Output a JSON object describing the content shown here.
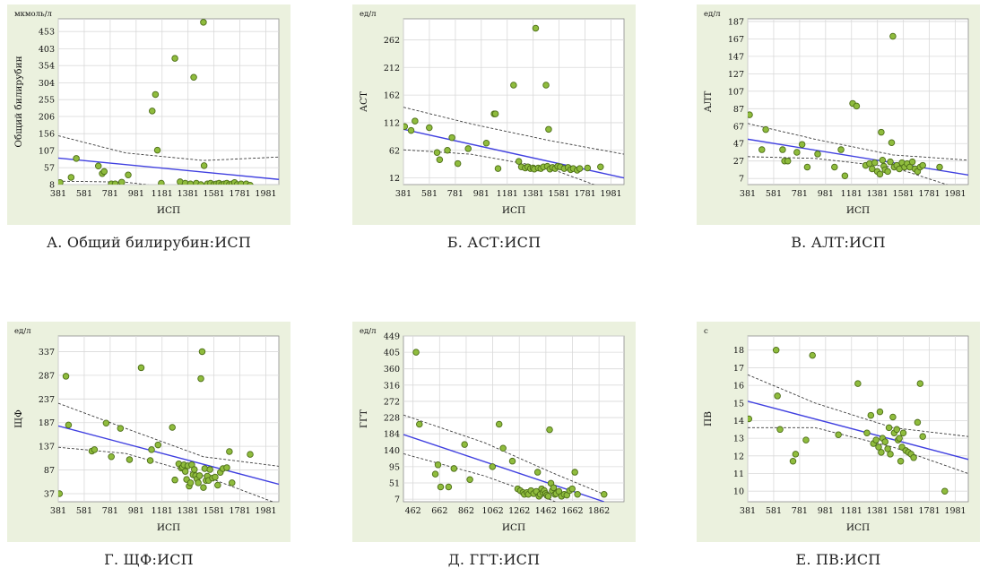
{
  "chart_data": [
    {
      "type": "scatter",
      "caption": "А. Общий билирубин:ИСП",
      "unit": "мкмоль/л",
      "xlabel": "ИСП",
      "ylabel": "Общий билирубин",
      "xticks": [
        381,
        581,
        781,
        981,
        1181,
        1381,
        1581,
        1781,
        1981
      ],
      "yticks": [
        8,
        57,
        107,
        156,
        206,
        255,
        304,
        354,
        403,
        453
      ],
      "xlim": [
        381,
        2081
      ],
      "ylim": [
        8,
        490
      ],
      "points": [
        [
          395,
          14
        ],
        [
          480,
          29
        ],
        [
          520,
          84
        ],
        [
          690,
          62
        ],
        [
          720,
          40
        ],
        [
          735,
          46
        ],
        [
          790,
          10
        ],
        [
          820,
          10
        ],
        [
          870,
          15
        ],
        [
          920,
          36
        ],
        [
          1105,
          222
        ],
        [
          1130,
          270
        ],
        [
          1145,
          108
        ],
        [
          1175,
          12
        ],
        [
          1280,
          375
        ],
        [
          1320,
          16
        ],
        [
          1360,
          12
        ],
        [
          1400,
          10
        ],
        [
          1425,
          320
        ],
        [
          1445,
          12
        ],
        [
          1480,
          8
        ],
        [
          1500,
          480
        ],
        [
          1505,
          63
        ],
        [
          1530,
          10
        ],
        [
          1555,
          12
        ],
        [
          1580,
          8
        ],
        [
          1600,
          10
        ],
        [
          1620,
          12
        ],
        [
          1640,
          8
        ],
        [
          1660,
          10
        ],
        [
          1680,
          12
        ],
        [
          1700,
          8
        ],
        [
          1720,
          10
        ],
        [
          1740,
          14
        ],
        [
          1760,
          8
        ],
        [
          1790,
          10
        ],
        [
          1830,
          10
        ],
        [
          1860,
          6
        ]
      ],
      "fit": [
        [
          381,
          85
        ],
        [
          2081,
          23
        ]
      ],
      "ci_upper": [
        [
          381,
          150
        ],
        [
          900,
          100
        ],
        [
          1500,
          78
        ],
        [
          2081,
          88
        ]
      ],
      "ci_lower": [
        [
          381,
          18
        ],
        [
          900,
          15
        ],
        [
          1500,
          -12
        ],
        [
          2081,
          -60
        ]
      ]
    },
    {
      "type": "scatter",
      "caption": "Б. АСТ:ИСП",
      "unit": "ед/л",
      "xlabel": "ИСП",
      "ylabel": "АСТ",
      "xticks": [
        381,
        581,
        781,
        981,
        1181,
        1381,
        1581,
        1781,
        1981
      ],
      "yticks": [
        12,
        62,
        112,
        162,
        212,
        262
      ],
      "xlim": [
        381,
        2081
      ],
      "ylim": [
        0,
        300
      ],
      "points": [
        [
          390,
          105
        ],
        [
          440,
          98
        ],
        [
          470,
          115
        ],
        [
          580,
          103
        ],
        [
          640,
          58
        ],
        [
          660,
          45
        ],
        [
          720,
          62
        ],
        [
          755,
          85
        ],
        [
          800,
          38
        ],
        [
          880,
          65
        ],
        [
          1020,
          75
        ],
        [
          1080,
          128
        ],
        [
          1090,
          128
        ],
        [
          1110,
          29
        ],
        [
          1230,
          180
        ],
        [
          1270,
          42
        ],
        [
          1290,
          32
        ],
        [
          1320,
          30
        ],
        [
          1340,
          32
        ],
        [
          1360,
          29
        ],
        [
          1380,
          30
        ],
        [
          1390,
          28
        ],
        [
          1400,
          283
        ],
        [
          1420,
          30
        ],
        [
          1440,
          29
        ],
        [
          1460,
          32
        ],
        [
          1480,
          180
        ],
        [
          1490,
          33
        ],
        [
          1500,
          100
        ],
        [
          1510,
          28
        ],
        [
          1530,
          31
        ],
        [
          1550,
          29
        ],
        [
          1570,
          33
        ],
        [
          1590,
          32
        ],
        [
          1620,
          29
        ],
        [
          1650,
          31
        ],
        [
          1670,
          27
        ],
        [
          1690,
          29
        ],
        [
          1720,
          26
        ],
        [
          1740,
          29
        ],
        [
          1800,
          30
        ],
        [
          1900,
          32
        ]
      ],
      "fit": [
        [
          381,
          100
        ],
        [
          2081,
          12
        ]
      ],
      "ci_upper": [
        [
          381,
          140
        ],
        [
          900,
          110
        ],
        [
          1500,
          80
        ],
        [
          2081,
          55
        ]
      ],
      "ci_lower": [
        [
          381,
          63
        ],
        [
          900,
          55
        ],
        [
          1500,
          30
        ],
        [
          2081,
          -20
        ]
      ]
    },
    {
      "type": "scatter",
      "caption": "В. АЛТ:ИСП",
      "unit": "ед/л",
      "xlabel": "ИСП",
      "ylabel": "АЛТ",
      "xticks": [
        381,
        581,
        781,
        981,
        1181,
        1381,
        1581,
        1781,
        1981
      ],
      "yticks": [
        7,
        27,
        47,
        67,
        87,
        107,
        127,
        147,
        167,
        187
      ],
      "xlim": [
        381,
        2081
      ],
      "ylim": [
        0,
        190
      ],
      "points": [
        [
          395,
          80
        ],
        [
          490,
          40
        ],
        [
          520,
          63
        ],
        [
          650,
          40
        ],
        [
          665,
          27
        ],
        [
          690,
          27
        ],
        [
          760,
          37
        ],
        [
          800,
          46
        ],
        [
          840,
          20
        ],
        [
          920,
          35
        ],
        [
          1050,
          20
        ],
        [
          1100,
          40
        ],
        [
          1130,
          10
        ],
        [
          1190,
          93
        ],
        [
          1220,
          90
        ],
        [
          1290,
          22
        ],
        [
          1320,
          24
        ],
        [
          1340,
          18
        ],
        [
          1360,
          25
        ],
        [
          1380,
          15
        ],
        [
          1400,
          12
        ],
        [
          1410,
          60
        ],
        [
          1420,
          28
        ],
        [
          1430,
          21
        ],
        [
          1440,
          17
        ],
        [
          1460,
          15
        ],
        [
          1480,
          26
        ],
        [
          1490,
          48
        ],
        [
          1500,
          170
        ],
        [
          1510,
          20
        ],
        [
          1530,
          22
        ],
        [
          1550,
          18
        ],
        [
          1570,
          25
        ],
        [
          1590,
          20
        ],
        [
          1610,
          24
        ],
        [
          1630,
          20
        ],
        [
          1650,
          26
        ],
        [
          1670,
          18
        ],
        [
          1690,
          15
        ],
        [
          1710,
          20
        ],
        [
          1730,
          22
        ],
        [
          1860,
          20
        ]
      ],
      "fit": [
        [
          381,
          52
        ],
        [
          2081,
          11
        ]
      ],
      "ci_upper": [
        [
          381,
          70
        ],
        [
          900,
          52
        ],
        [
          1500,
          34
        ],
        [
          2081,
          28
        ]
      ],
      "ci_lower": [
        [
          381,
          32
        ],
        [
          900,
          30
        ],
        [
          1500,
          20
        ],
        [
          2081,
          -8
        ]
      ]
    },
    {
      "type": "scatter",
      "caption": "Г. ЩФ:ИСП",
      "unit": "ед/л",
      "xlabel": "ИСП",
      "ylabel": "ЩФ",
      "xticks": [
        381,
        581,
        781,
        981,
        1181,
        1381,
        1581,
        1781,
        1981
      ],
      "yticks": [
        37,
        87,
        137,
        187,
        237,
        287,
        337
      ],
      "xlim": [
        381,
        2081
      ],
      "ylim": [
        20,
        370
      ],
      "points": [
        [
          390,
          37
        ],
        [
          440,
          285
        ],
        [
          460,
          182
        ],
        [
          640,
          127
        ],
        [
          660,
          130
        ],
        [
          750,
          186
        ],
        [
          790,
          115
        ],
        [
          860,
          175
        ],
        [
          930,
          109
        ],
        [
          1020,
          303
        ],
        [
          1090,
          107
        ],
        [
          1100,
          130
        ],
        [
          1150,
          140
        ],
        [
          1260,
          177
        ],
        [
          1280,
          66
        ],
        [
          1310,
          100
        ],
        [
          1330,
          91
        ],
        [
          1340,
          93
        ],
        [
          1350,
          98
        ],
        [
          1360,
          84
        ],
        [
          1370,
          67
        ],
        [
          1380,
          96
        ],
        [
          1390,
          53
        ],
        [
          1400,
          60
        ],
        [
          1410,
          98
        ],
        [
          1420,
          77
        ],
        [
          1430,
          88
        ],
        [
          1440,
          75
        ],
        [
          1450,
          68
        ],
        [
          1460,
          60
        ],
        [
          1470,
          75
        ],
        [
          1480,
          280
        ],
        [
          1490,
          337
        ],
        [
          1500,
          50
        ],
        [
          1510,
          90
        ],
        [
          1520,
          65
        ],
        [
          1530,
          74
        ],
        [
          1540,
          65
        ],
        [
          1550,
          88
        ],
        [
          1570,
          70
        ],
        [
          1590,
          72
        ],
        [
          1610,
          55
        ],
        [
          1630,
          82
        ],
        [
          1650,
          90
        ],
        [
          1680,
          92
        ],
        [
          1700,
          126
        ],
        [
          1720,
          60
        ],
        [
          1860,
          120
        ]
      ],
      "fit": [
        [
          381,
          180
        ],
        [
          2081,
          57
        ]
      ],
      "ci_upper": [
        [
          381,
          228
        ],
        [
          900,
          175
        ],
        [
          1500,
          115
        ],
        [
          2081,
          95
        ]
      ],
      "ci_lower": [
        [
          381,
          135
        ],
        [
          900,
          122
        ],
        [
          1500,
          75
        ],
        [
          2081,
          15
        ]
      ]
    },
    {
      "type": "scatter",
      "caption": "Д. ГГТ:ИСП",
      "unit": "ед/л",
      "xlabel": "ИСП",
      "ylabel": "ГГТ",
      "xticks": [
        462,
        662,
        862,
        1062,
        1262,
        1462,
        1662,
        1862
      ],
      "yticks": [
        7,
        51,
        95,
        140,
        184,
        228,
        272,
        316,
        360,
        405,
        449
      ],
      "xlim": [
        390,
        2050
      ],
      "ylim": [
        0,
        449
      ],
      "points": [
        [
          485,
          405
        ],
        [
          510,
          210
        ],
        [
          630,
          75
        ],
        [
          650,
          100
        ],
        [
          670,
          40
        ],
        [
          730,
          40
        ],
        [
          770,
          90
        ],
        [
          850,
          155
        ],
        [
          890,
          60
        ],
        [
          1060,
          95
        ],
        [
          1110,
          210
        ],
        [
          1140,
          145
        ],
        [
          1210,
          110
        ],
        [
          1250,
          35
        ],
        [
          1270,
          30
        ],
        [
          1290,
          25
        ],
        [
          1300,
          20
        ],
        [
          1320,
          25
        ],
        [
          1330,
          20
        ],
        [
          1350,
          30
        ],
        [
          1370,
          22
        ],
        [
          1390,
          28
        ],
        [
          1400,
          80
        ],
        [
          1410,
          15
        ],
        [
          1420,
          20
        ],
        [
          1430,
          35
        ],
        [
          1440,
          25
        ],
        [
          1450,
          30
        ],
        [
          1460,
          22
        ],
        [
          1470,
          18
        ],
        [
          1480,
          15
        ],
        [
          1490,
          195
        ],
        [
          1500,
          50
        ],
        [
          1510,
          30
        ],
        [
          1520,
          38
        ],
        [
          1530,
          20
        ],
        [
          1540,
          22
        ],
        [
          1560,
          28
        ],
        [
          1580,
          15
        ],
        [
          1600,
          20
        ],
        [
          1620,
          18
        ],
        [
          1640,
          30
        ],
        [
          1660,
          35
        ],
        [
          1680,
          80
        ],
        [
          1700,
          20
        ],
        [
          1900,
          20
        ]
      ],
      "fit": [
        [
          390,
          182
        ],
        [
          1900,
          0
        ]
      ],
      "ci_upper": [
        [
          390,
          235
        ],
        [
          1000,
          160
        ],
        [
          1500,
          80
        ],
        [
          1900,
          20
        ]
      ],
      "ci_lower": [
        [
          390,
          130
        ],
        [
          1000,
          70
        ],
        [
          1500,
          5
        ],
        [
          1700,
          -25
        ]
      ]
    },
    {
      "type": "scatter",
      "caption": "Е. ПВ:ИСП",
      "unit": "с",
      "xlabel": "ИСП",
      "ylabel": "ПВ",
      "xticks": [
        381,
        581,
        781,
        981,
        1181,
        1381,
        1581,
        1781,
        1981
      ],
      "yticks": [
        10,
        11,
        12,
        13,
        14,
        15,
        16,
        17,
        18
      ],
      "xlim": [
        381,
        2081
      ],
      "ylim": [
        9.4,
        18.8
      ],
      "points": [
        [
          390,
          14.1
        ],
        [
          600,
          18.0
        ],
        [
          610,
          15.4
        ],
        [
          630,
          13.5
        ],
        [
          730,
          11.7
        ],
        [
          750,
          12.1
        ],
        [
          830,
          12.9
        ],
        [
          880,
          17.7
        ],
        [
          1080,
          13.2
        ],
        [
          1230,
          16.1
        ],
        [
          1300,
          13.3
        ],
        [
          1330,
          14.3
        ],
        [
          1350,
          12.7
        ],
        [
          1370,
          12.9
        ],
        [
          1390,
          12.5
        ],
        [
          1400,
          14.5
        ],
        [
          1410,
          12.2
        ],
        [
          1420,
          13.0
        ],
        [
          1440,
          12.8
        ],
        [
          1460,
          12.4
        ],
        [
          1470,
          13.6
        ],
        [
          1480,
          12.1
        ],
        [
          1500,
          14.2
        ],
        [
          1510,
          13.3
        ],
        [
          1530,
          13.5
        ],
        [
          1540,
          12.9
        ],
        [
          1550,
          13.0
        ],
        [
          1560,
          11.7
        ],
        [
          1570,
          12.5
        ],
        [
          1580,
          13.3
        ],
        [
          1600,
          12.3
        ],
        [
          1620,
          12.2
        ],
        [
          1640,
          12.1
        ],
        [
          1660,
          11.9
        ],
        [
          1690,
          13.9
        ],
        [
          1710,
          16.1
        ],
        [
          1730,
          13.1
        ],
        [
          1900,
          10.0
        ]
      ],
      "fit": [
        [
          381,
          15.1
        ],
        [
          2081,
          11.8
        ]
      ],
      "ci_upper": [
        [
          381,
          16.6
        ],
        [
          900,
          15.0
        ],
        [
          1500,
          13.6
        ],
        [
          2081,
          13.1
        ]
      ],
      "ci_lower": [
        [
          381,
          13.6
        ],
        [
          900,
          13.6
        ],
        [
          1500,
          12.5
        ],
        [
          2081,
          11.0
        ]
      ]
    }
  ]
}
